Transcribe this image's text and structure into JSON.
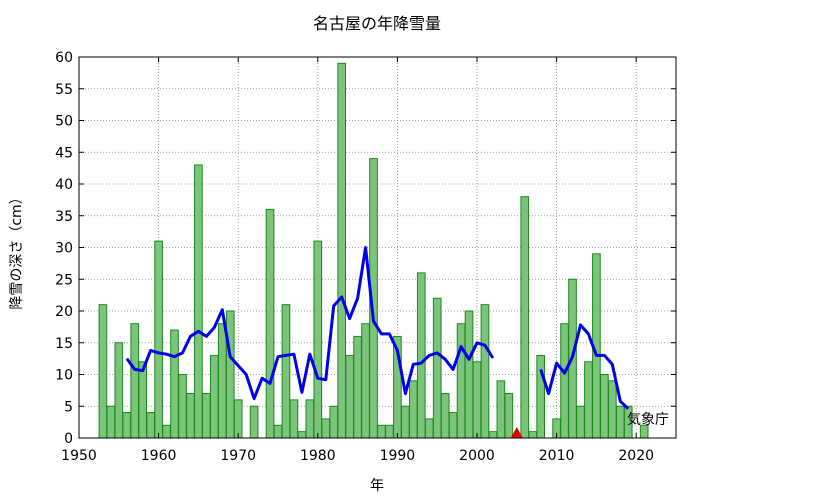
{
  "chart_data": {
    "type": "bar",
    "title": "名古屋の年降雪量",
    "xlabel": "年",
    "ylabel": "降雪の深さ（cm）",
    "credit": "気象庁",
    "xlim": [
      1950,
      2025
    ],
    "ylim": [
      0,
      60
    ],
    "xticks": [
      "1950",
      "1960",
      "1970",
      "1980",
      "1990",
      "2000",
      "2010",
      "2020"
    ],
    "yticks": [
      "0",
      "5",
      "10",
      "15",
      "20",
      "25",
      "30",
      "35",
      "40",
      "45",
      "50",
      "55",
      "60"
    ],
    "grid": true,
    "bar_series": {
      "x": [
        1953,
        1954,
        1955,
        1956,
        1957,
        1958,
        1959,
        1960,
        1961,
        1962,
        1963,
        1964,
        1965,
        1966,
        1967,
        1968,
        1969,
        1970,
        1971,
        1972,
        1973,
        1974,
        1975,
        1976,
        1977,
        1978,
        1979,
        1980,
        1981,
        1982,
        1983,
        1984,
        1985,
        1986,
        1987,
        1988,
        1989,
        1990,
        1991,
        1992,
        1993,
        1994,
        1995,
        1996,
        1997,
        1998,
        1999,
        2000,
        2001,
        2002,
        2003,
        2004,
        2005,
        2006,
        2007,
        2008,
        2009,
        2010,
        2011,
        2012,
        2013,
        2014,
        2015,
        2016,
        2017,
        2018,
        2019,
        2020,
        2021
      ],
      "values": [
        21,
        5,
        15,
        4,
        18,
        12,
        4,
        31,
        2,
        17,
        10,
        7,
        43,
        7,
        13,
        18,
        20,
        6,
        0,
        5,
        0,
        36,
        2,
        21,
        6,
        1,
        6,
        31,
        3,
        5,
        59,
        13,
        16,
        18,
        44,
        2,
        2,
        16,
        5,
        9,
        26,
        3,
        22,
        7,
        4,
        18,
        20,
        12,
        21,
        1,
        9,
        7,
        null,
        38,
        1,
        13,
        0,
        3,
        18,
        25,
        5,
        12,
        29,
        10,
        9,
        5,
        5,
        0,
        2
      ],
      "color": "#7cc47c",
      "edge_color": "#1a8a1a"
    },
    "line_series": {
      "x": [
        1956,
        1957,
        1958,
        1959,
        1960,
        1961,
        1962,
        1963,
        1964,
        1965,
        1966,
        1967,
        1968,
        1969,
        1970,
        1971,
        1972,
        1973,
        1974,
        1975,
        1976,
        1977,
        1978,
        1979,
        1980,
        1981,
        1982,
        1983,
        1984,
        1985,
        1986,
        1987,
        1988,
        1989,
        1990,
        1991,
        1992,
        1993,
        1994,
        1995,
        1996,
        1997,
        1998,
        1999,
        2000,
        2001,
        2002,
        2003,
        2004,
        2005,
        2006,
        2007,
        2008,
        2009,
        2010,
        2011,
        2012,
        2013,
        2014,
        2015,
        2016,
        2017,
        2018,
        2019
      ],
      "values": [
        12.5,
        10.8,
        10.6,
        13.8,
        13.4,
        13.2,
        12.8,
        13.4,
        16.0,
        16.8,
        16.0,
        17.4,
        20.2,
        12.8,
        11.4,
        10.0,
        6.2,
        9.4,
        8.6,
        12.8,
        13.0,
        13.2,
        7.2,
        13.2,
        9.4,
        9.2,
        20.8,
        22.2,
        18.8,
        22.0,
        30.0,
        18.4,
        16.4,
        16.4,
        13.8,
        7.0,
        11.6,
        11.8,
        13.0,
        13.4,
        12.4,
        10.8,
        14.4,
        12.4,
        15.0,
        14.6,
        12.6,
        null,
        null,
        null,
        null,
        null,
        10.8,
        7.0,
        11.8,
        10.2,
        12.8,
        17.8,
        16.4,
        13.0,
        13.0,
        11.6,
        5.8,
        4.6
      ],
      "color": "#0000ee",
      "name": ""
    },
    "marker": {
      "x": 2005,
      "y": 0,
      "shape": "triangle",
      "color": "#dd0000"
    }
  }
}
